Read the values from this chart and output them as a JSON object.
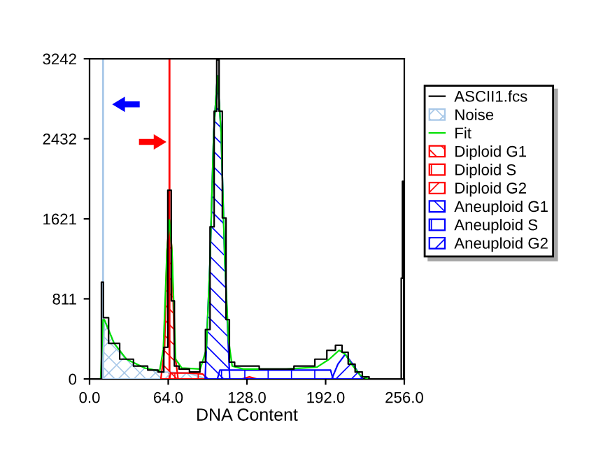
{
  "chart_data": {
    "type": "area",
    "xlabel": "DNA Content",
    "xlim": [
      0,
      256
    ],
    "ylim": [
      0,
      3242
    ],
    "xticks": [
      {
        "value": 0,
        "label": "0.0"
      },
      {
        "value": 64,
        "label": "64.0"
      },
      {
        "value": 128,
        "label": "128.0"
      },
      {
        "value": 192,
        "label": "192.0"
      },
      {
        "value": 256,
        "label": "256.0"
      }
    ],
    "yticks": [
      0,
      811,
      1621,
      2432,
      3242
    ],
    "grid": false,
    "legend": "right",
    "series": [
      {
        "name": "ASCII1.fcs",
        "type": "step",
        "color": "#000000",
        "x": [
          8.7,
          10.6,
          12,
          19,
          30,
          41.5,
          53,
          58.5,
          62.3,
          65,
          68,
          70,
          75.5,
          87,
          92.5,
          96,
          100,
          102.7,
          104.2,
          106.5,
          109.5,
          112.5,
          115,
          121,
          155,
          177.5,
          189,
          197,
          203,
          207.7,
          213,
          219,
          224.7,
          230,
          253,
          254,
          255,
          256
        ],
        "values": [
          0,
          980,
          620,
          360,
          200,
          130,
          90,
          70,
          320,
          1910,
          790,
          130,
          100,
          70,
          170,
          500,
          1540,
          2710,
          3230,
          2710,
          1630,
          600,
          170,
          130,
          100,
          130,
          200,
          290,
          340,
          270,
          150,
          70,
          20,
          0,
          0,
          1020,
          2000,
          0
        ]
      },
      {
        "name": "Noise",
        "color": "#a8c8e8",
        "x": [
          11,
          12,
          20,
          30,
          45,
          60,
          80,
          95
        ],
        "values": [
          0,
          600,
          360,
          200,
          110,
          70,
          60,
          0
        ]
      },
      {
        "name": "Fit",
        "type": "line",
        "color": "#00e000",
        "x": [
          9,
          11,
          12,
          20,
          30,
          45,
          57,
          60,
          63,
          65,
          67,
          70,
          75,
          90,
          95,
          98,
          101,
          104,
          107,
          110,
          113,
          116,
          125,
          160,
          185,
          195,
          203,
          208,
          213,
          220,
          226
        ],
        "values": [
          0,
          600,
          600,
          360,
          200,
          110,
          80,
          300,
          1300,
          1610,
          1300,
          200,
          110,
          100,
          300,
          1200,
          2500,
          3070,
          2500,
          1200,
          400,
          130,
          100,
          100,
          120,
          200,
          290,
          250,
          150,
          40,
          0
        ]
      },
      {
        "name": "Diploid G1",
        "color": "#ff0000",
        "x": [
          58,
          61,
          63,
          65,
          67,
          69,
          72
        ],
        "values": [
          0,
          300,
          1300,
          1610,
          1300,
          300,
          0
        ]
      },
      {
        "name": "Diploid S",
        "color": "#ff0000",
        "x": [
          65,
          66,
          80,
          92,
          96
        ],
        "values": [
          0,
          60,
          60,
          50,
          0
        ]
      },
      {
        "name": "Diploid G2",
        "color": "#ff0000",
        "x": [
          124,
          130,
          136
        ],
        "values": [
          0,
          20,
          0
        ]
      },
      {
        "name": "Aneuploid G1",
        "color": "#0000ff",
        "x": [
          94,
          98,
          101,
          104,
          107,
          110,
          114
        ],
        "values": [
          0,
          1200,
          2500,
          3070,
          2500,
          1200,
          0
        ]
      },
      {
        "name": "Aneuploid S",
        "color": "#0000ff",
        "x": [
          104,
          106,
          120,
          160,
          190,
          196,
          198
        ],
        "values": [
          0,
          90,
          90,
          90,
          90,
          90,
          0
        ]
      },
      {
        "name": "Aneuploid G2",
        "color": "#0000ff",
        "x": [
          197,
          202,
          208,
          214,
          222
        ],
        "values": [
          0,
          150,
          250,
          150,
          0
        ]
      }
    ],
    "ref_lines": [
      {
        "axis": "x",
        "value": 11,
        "color": "#a8c8e8"
      },
      {
        "axis": "x",
        "value": 65,
        "color": "#ff0000"
      }
    ]
  }
}
